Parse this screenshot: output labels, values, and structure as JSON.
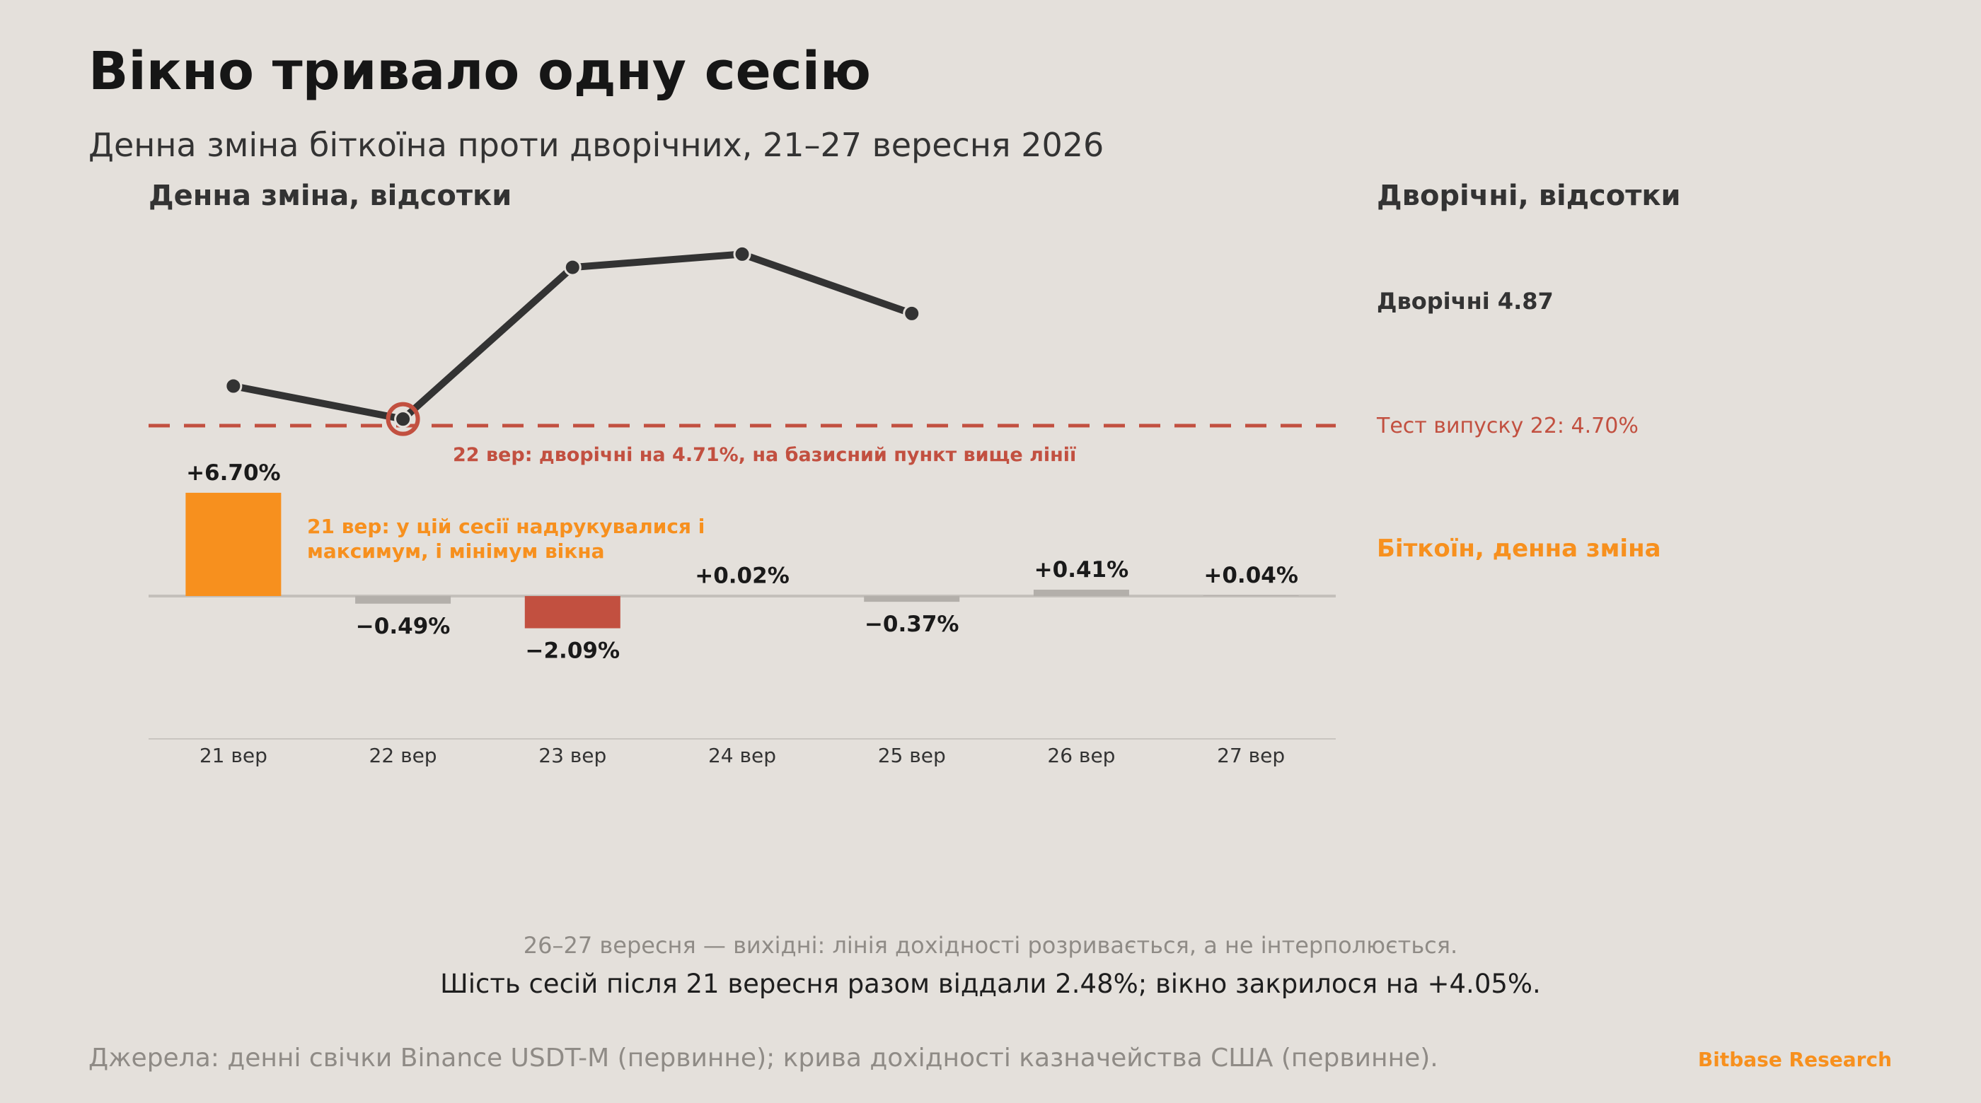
{
  "page": {
    "title": "Вікно тривало одну сесію",
    "subtitle": "Денна зміна біткоїна проти дворічних, 21–27 вересня 2026",
    "note": "26–27 вересня — вихідні: лінія дохідності розривається, а не інтерполюється.",
    "summary": "Шість сесій після 21 вересня разом віддали 2.48%; вікно закрилося на +4.05%.",
    "source": "Джерела: денні свічки Binance USDT-M (первинне); крива дохідності казначейства США (первинне).",
    "brand": "Bitbase Research"
  },
  "colors": {
    "background": "#e4e0db",
    "bitcoin_up": "#f7901e",
    "bitcoin_down_big": "#c25040",
    "bitcoin_small": "#b3afaa",
    "yield_line": "#333333",
    "threshold": "#c25040"
  },
  "chart_data": {
    "type": "bar+line",
    "categories": [
      "21 вер",
      "22 вер",
      "23 вер",
      "24 вер",
      "25 вер",
      "26 вер",
      "27 вер"
    ],
    "left_axis_label": "Денна зміна, відсотки",
    "right_axis_label": "Дворічні, відсотки",
    "series": [
      {
        "name": "Біткоїн, денна зміна",
        "type": "bar",
        "values": [
          6.7,
          -0.49,
          -2.09,
          0.02,
          -0.37,
          0.41,
          0.04
        ],
        "labels": [
          "+6.70%",
          "−0.49%",
          "−2.09%",
          "+0.02%",
          "−0.37%",
          "+0.41%",
          "+0.04%"
        ]
      },
      {
        "name": "Дворічні",
        "type": "line",
        "values": [
          4.76,
          4.71,
          4.94,
          4.96,
          4.87,
          null,
          null
        ],
        "end_label": "Дворічні 4.87"
      }
    ],
    "threshold": {
      "value": 4.7,
      "label": "Тест випуску 22: 4.70%"
    },
    "annotations": [
      {
        "category": "22 вер",
        "text": "22 вер: дворічні на 4.71%, на базисний пункт вище лінії"
      },
      {
        "category": "21 вер",
        "lines": [
          "21 вер: у цій сесії надрукувалися і",
          "максимум, і мінімум вікна"
        ]
      }
    ],
    "legend_placement": "right"
  }
}
